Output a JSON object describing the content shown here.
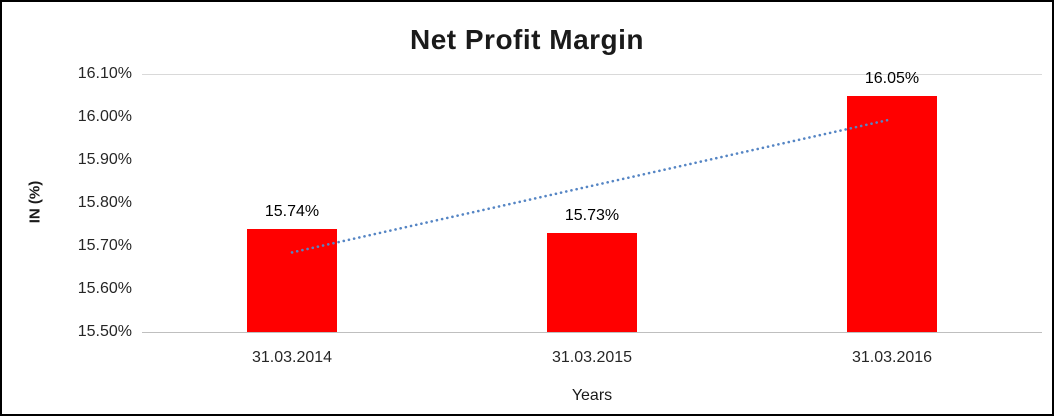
{
  "chart_data": {
    "type": "bar",
    "title": "Net Profit Margin",
    "xlabel": "Years",
    "ylabel": "IN (%)",
    "categories": [
      "31.03.2014",
      "31.03.2015",
      "31.03.2016"
    ],
    "values": [
      15.74,
      15.73,
      16.05
    ],
    "data_labels": [
      "15.74%",
      "15.73%",
      "16.05%"
    ],
    "ylim": [
      15.5,
      16.1
    ],
    "ytick_step": 0.1,
    "ytick_labels": [
      "15.50%",
      "15.60%",
      "15.70%",
      "15.80%",
      "15.90%",
      "16.00%",
      "16.10%"
    ],
    "bar_color": "#ff0000",
    "trendline_color": "#5585c4",
    "grid": false,
    "legend": "none",
    "trendline": "linear-dotted"
  }
}
